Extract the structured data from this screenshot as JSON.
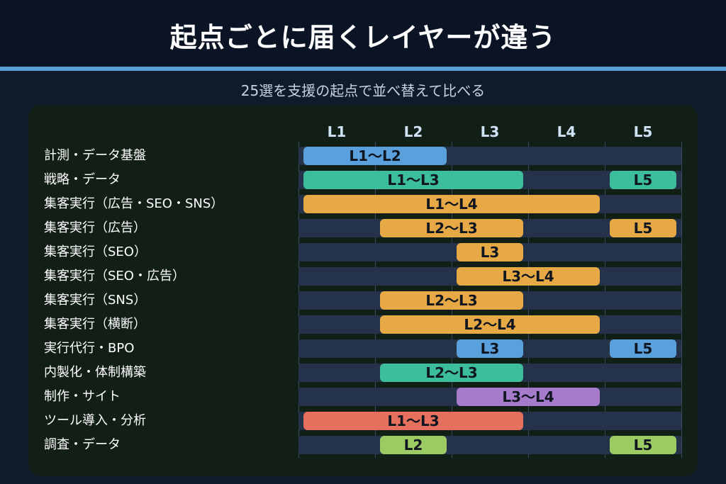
{
  "title": "起点ごとに届くレイヤーが違う",
  "subtitle": "25選を支援の起点で並べ替えて比べる",
  "colors": {
    "blue": "#5aa0dc",
    "green": "#3cbd9c",
    "orange": "#e6a945",
    "purple": "#a77bcc",
    "red": "#e76f5e",
    "lime": "#9ccb63",
    "track": "#243349",
    "accent": "#5a9fd4"
  },
  "columns": [
    "L1",
    "L2",
    "L3",
    "L4",
    "L5"
  ],
  "rows": [
    {
      "label": "計測・データ基盤",
      "bars": [
        {
          "start": 1,
          "end": 2,
          "text": "L1〜L2",
          "color": "blue"
        }
      ]
    },
    {
      "label": "戦略・データ",
      "bars": [
        {
          "start": 1,
          "end": 3,
          "text": "L1〜L3",
          "color": "green"
        },
        {
          "start": 5,
          "end": 5,
          "text": "L5",
          "color": "green"
        }
      ]
    },
    {
      "label": "集客実行（広告・SEO・SNS）",
      "bars": [
        {
          "start": 1,
          "end": 4,
          "text": "L1〜L4",
          "color": "orange"
        }
      ]
    },
    {
      "label": "集客実行（広告）",
      "bars": [
        {
          "start": 2,
          "end": 3,
          "text": "L2〜L3",
          "color": "orange"
        },
        {
          "start": 5,
          "end": 5,
          "text": "L5",
          "color": "orange"
        }
      ]
    },
    {
      "label": "集客実行（SEO）",
      "bars": [
        {
          "start": 3,
          "end": 3,
          "text": "L3",
          "color": "orange"
        }
      ]
    },
    {
      "label": "集客実行（SEO・広告）",
      "bars": [
        {
          "start": 3,
          "end": 4,
          "text": "L3〜L4",
          "color": "orange"
        }
      ]
    },
    {
      "label": "集客実行（SNS）",
      "bars": [
        {
          "start": 2,
          "end": 3,
          "text": "L2〜L3",
          "color": "orange"
        }
      ]
    },
    {
      "label": "集客実行（横断）",
      "bars": [
        {
          "start": 2,
          "end": 4,
          "text": "L2〜L4",
          "color": "orange"
        }
      ]
    },
    {
      "label": "実行代行・BPO",
      "bars": [
        {
          "start": 3,
          "end": 3,
          "text": "L3",
          "color": "blue"
        },
        {
          "start": 5,
          "end": 5,
          "text": "L5",
          "color": "blue"
        }
      ]
    },
    {
      "label": "内製化・体制構築",
      "bars": [
        {
          "start": 2,
          "end": 3,
          "text": "L2〜L3",
          "color": "green"
        }
      ]
    },
    {
      "label": "制作・サイト",
      "bars": [
        {
          "start": 3,
          "end": 4,
          "text": "L3〜L4",
          "color": "purple"
        }
      ]
    },
    {
      "label": "ツール導入・分析",
      "bars": [
        {
          "start": 1,
          "end": 3,
          "text": "L1〜L3",
          "color": "red"
        }
      ]
    },
    {
      "label": "調査・データ",
      "bars": [
        {
          "start": 2,
          "end": 2,
          "text": "L2",
          "color": "lime"
        },
        {
          "start": 5,
          "end": 5,
          "text": "L5",
          "color": "lime"
        }
      ]
    }
  ]
}
